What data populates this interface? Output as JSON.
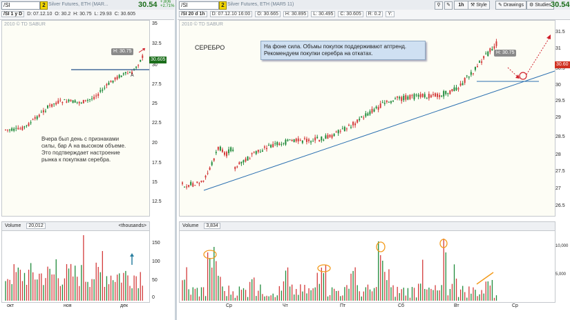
{
  "left": {
    "symbol_input": "/SI",
    "period_badge": "2",
    "symbol_name": "Silver Futures, ETH (MAR...",
    "last_price": "30.54",
    "change_abs": "+.806",
    "change_pct": "+2.71%",
    "period_label": "/SI 1 y D",
    "ohlc": {
      "date": "D: 07.12.10",
      "open": "O: 30.2",
      "high": "H: 30.75",
      "low": "L: 29.93",
      "close": "C: 30.605"
    },
    "watermark": "2010 © TD SABUR",
    "high_label": "H: 30.75",
    "current_tag": "30.605",
    "marker_A": "A",
    "note": [
      "Вчера был день с признаками",
      "силы, бар А на высоком объеме.",
      "Это подтверждает настроение",
      "рынка к покупкам серебра."
    ],
    "y_ticks": [
      "35",
      "32.5",
      "30",
      "27.5",
      "25",
      "22.5",
      "20",
      "17.5",
      "15",
      "12.5"
    ],
    "volume": {
      "title": "Volume",
      "value": "20,012",
      "units": "<thousands>",
      "y_ticks": [
        "150",
        "100",
        "50",
        "0"
      ]
    },
    "x_ticks": [
      "окт",
      "ноя",
      "дек"
    ]
  },
  "right": {
    "symbol_input": "/SI",
    "period_badge": "2",
    "symbol_name": "Silver Futures, ETH (MAR5 11)",
    "period_label": "/SI 20 d 1h",
    "ohlc": {
      "date": "D: 07.12.10 16:00",
      "open": "O: 30.665",
      "high": "H: 30.895",
      "low": "L: 30.495",
      "close": "C: 30.605",
      "r": "R: 0.2",
      "y": "Y:"
    },
    "watermark": "2010 © TD SABUR",
    "title": "СЕРЕБРО",
    "bubble": [
      "На фоне сила. Объмы покупок поддерживают аптренд.",
      "Рекомендуем покупки серебра на откатах."
    ],
    "high_label": "H: 30.75",
    "current_tag": "30.60",
    "y_ticks": [
      "31.5",
      "31",
      "30.5",
      "30",
      "29.5",
      "29",
      "28.5",
      "28",
      "27.5",
      "27",
      "26.5"
    ],
    "buttons": {
      "timeframe": "1h",
      "style": "Style",
      "drawings": "Drawings",
      "studies": "Studies"
    },
    "last_price": "30.54",
    "volume": {
      "title": "Volume",
      "value": "3,834",
      "y_ticks": [
        "10,000",
        "5,000"
      ]
    },
    "x_ticks": [
      "Ср",
      "Чт",
      "Пт",
      "Сб",
      "Вт",
      "Ср"
    ]
  },
  "colors": {
    "up": "#1f8a3a",
    "down": "#d33a3a",
    "trend": "#2a6fb0",
    "accent_red": "#d0202a",
    "orange": "#f39a1a",
    "price_tag": "#1b6e1b",
    "price_tag_right": "#d03020"
  }
}
